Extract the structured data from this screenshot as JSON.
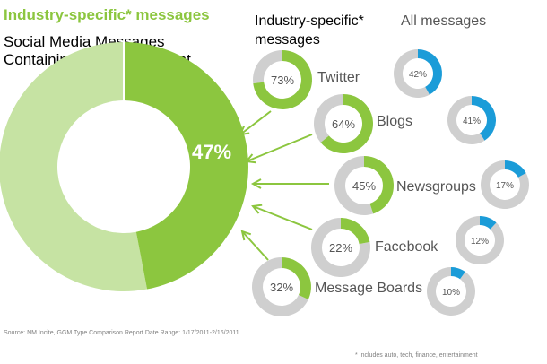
{
  "colors": {
    "industry_green": "#8cc63f",
    "industry_green_light": "#c6e3a3",
    "all_blue": "#1b9cd8",
    "ring_gray": "#cfcfcf",
    "source_gray": "#808080",
    "title_gray": "#555555"
  },
  "headings": {
    "top_title": "Industry-specific* messages",
    "subtitle_line1": "Social Media Messages",
    "subtitle_line2": "Containing Links to Content",
    "col_industry_line1": "Industry-specific*",
    "col_industry_line2": "messages",
    "col_all": "All messages"
  },
  "footer": {
    "source": "Source: NM Incite, GGM Type Comparison Report Date Range: 1/17/2011-2/16/2011",
    "footnote": "* Includes auto, tech, finance, entertainment"
  },
  "chart_data": {
    "type": "donut",
    "main": {
      "label": "47%",
      "value": 47
    },
    "categories": [
      "Twitter",
      "Blogs",
      "Newsgroups",
      "Facebook",
      "Message Boards"
    ],
    "series": [
      {
        "name": "Industry-specific* messages",
        "values": [
          73,
          64,
          45,
          22,
          32
        ],
        "labels": [
          "73%",
          "64%",
          "45%",
          "22%",
          "32%"
        ]
      },
      {
        "name": "All messages",
        "values": [
          42,
          41,
          17,
          12,
          10
        ],
        "labels": [
          "42%",
          "41%",
          "17%",
          "12%",
          "10%"
        ]
      }
    ]
  }
}
